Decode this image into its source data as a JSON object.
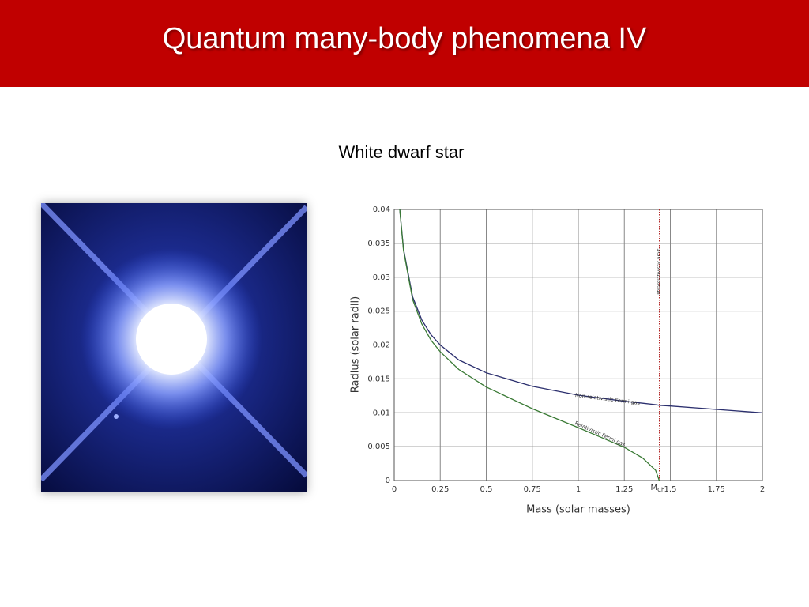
{
  "header": {
    "title": "Quantum many-body phenomena IV"
  },
  "subtitle": "White dwarf star",
  "chart_data": {
    "type": "line",
    "x_label": "Mass (solar masses)",
    "y_label": "Radius (solar radii)",
    "x": [
      0.03,
      0.05,
      0.1,
      0.15,
      0.2,
      0.25,
      0.35,
      0.5,
      0.75,
      1,
      1.25,
      1.35,
      1.42,
      1.44,
      1.5,
      1.75,
      2
    ],
    "series": [
      {
        "name": "Non-relativistic Fermi gas",
        "color": "#2b2f6e",
        "values": [
          0.04,
          0.0342,
          0.0271,
          0.0237,
          0.0215,
          0.02,
          0.0178,
          0.0159,
          0.0139,
          0.0126,
          0.0117,
          0.0114,
          0.0112,
          0.0111,
          0.011,
          0.0105,
          0.01
        ]
      },
      {
        "name": "Relativistic Fermi gas",
        "color": "#3a7a35",
        "values": [
          0.04,
          0.034,
          0.0267,
          0.0231,
          0.0207,
          0.019,
          0.0164,
          0.0138,
          0.0106,
          0.0078,
          0.0049,
          0.0033,
          0.0015,
          0,
          null,
          null,
          null
        ]
      }
    ],
    "limit": {
      "label": "Ultrarelativistic limit",
      "x": 1.44,
      "tick_main": "M",
      "tick_sub": "Ch",
      "color": "#b22222"
    },
    "xlim": [
      0,
      2
    ],
    "ylim": [
      0,
      0.04
    ],
    "xticks": [
      0,
      0.25,
      0.5,
      0.75,
      1,
      1.25,
      1.5,
      1.75,
      2
    ],
    "yticks": [
      0,
      0.005,
      0.01,
      0.015,
      0.02,
      0.025,
      0.03,
      0.035,
      0.04
    ],
    "grid": true
  }
}
